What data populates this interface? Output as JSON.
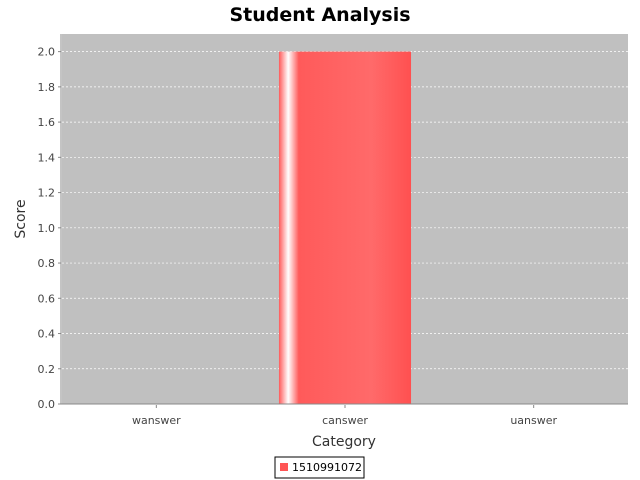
{
  "chart_data": {
    "type": "bar",
    "title": "Student Analysis",
    "xlabel": "Category",
    "ylabel": "Score",
    "categories": [
      "wanswer",
      "canswer",
      "uanswer"
    ],
    "series": [
      {
        "name": "1510991072",
        "values": [
          0,
          2.0,
          0
        ]
      }
    ],
    "ylim": [
      0,
      2.1
    ],
    "yticks": [
      "0.0",
      "0.2",
      "0.4",
      "0.6",
      "0.8",
      "1.0",
      "1.2",
      "1.4",
      "1.6",
      "1.8",
      "2.0"
    ],
    "grid": true,
    "legend_position": "bottom",
    "colors": {
      "plot_background": "#c0c0c0",
      "bar": "#ff5555",
      "grid": "#ffffff"
    }
  }
}
